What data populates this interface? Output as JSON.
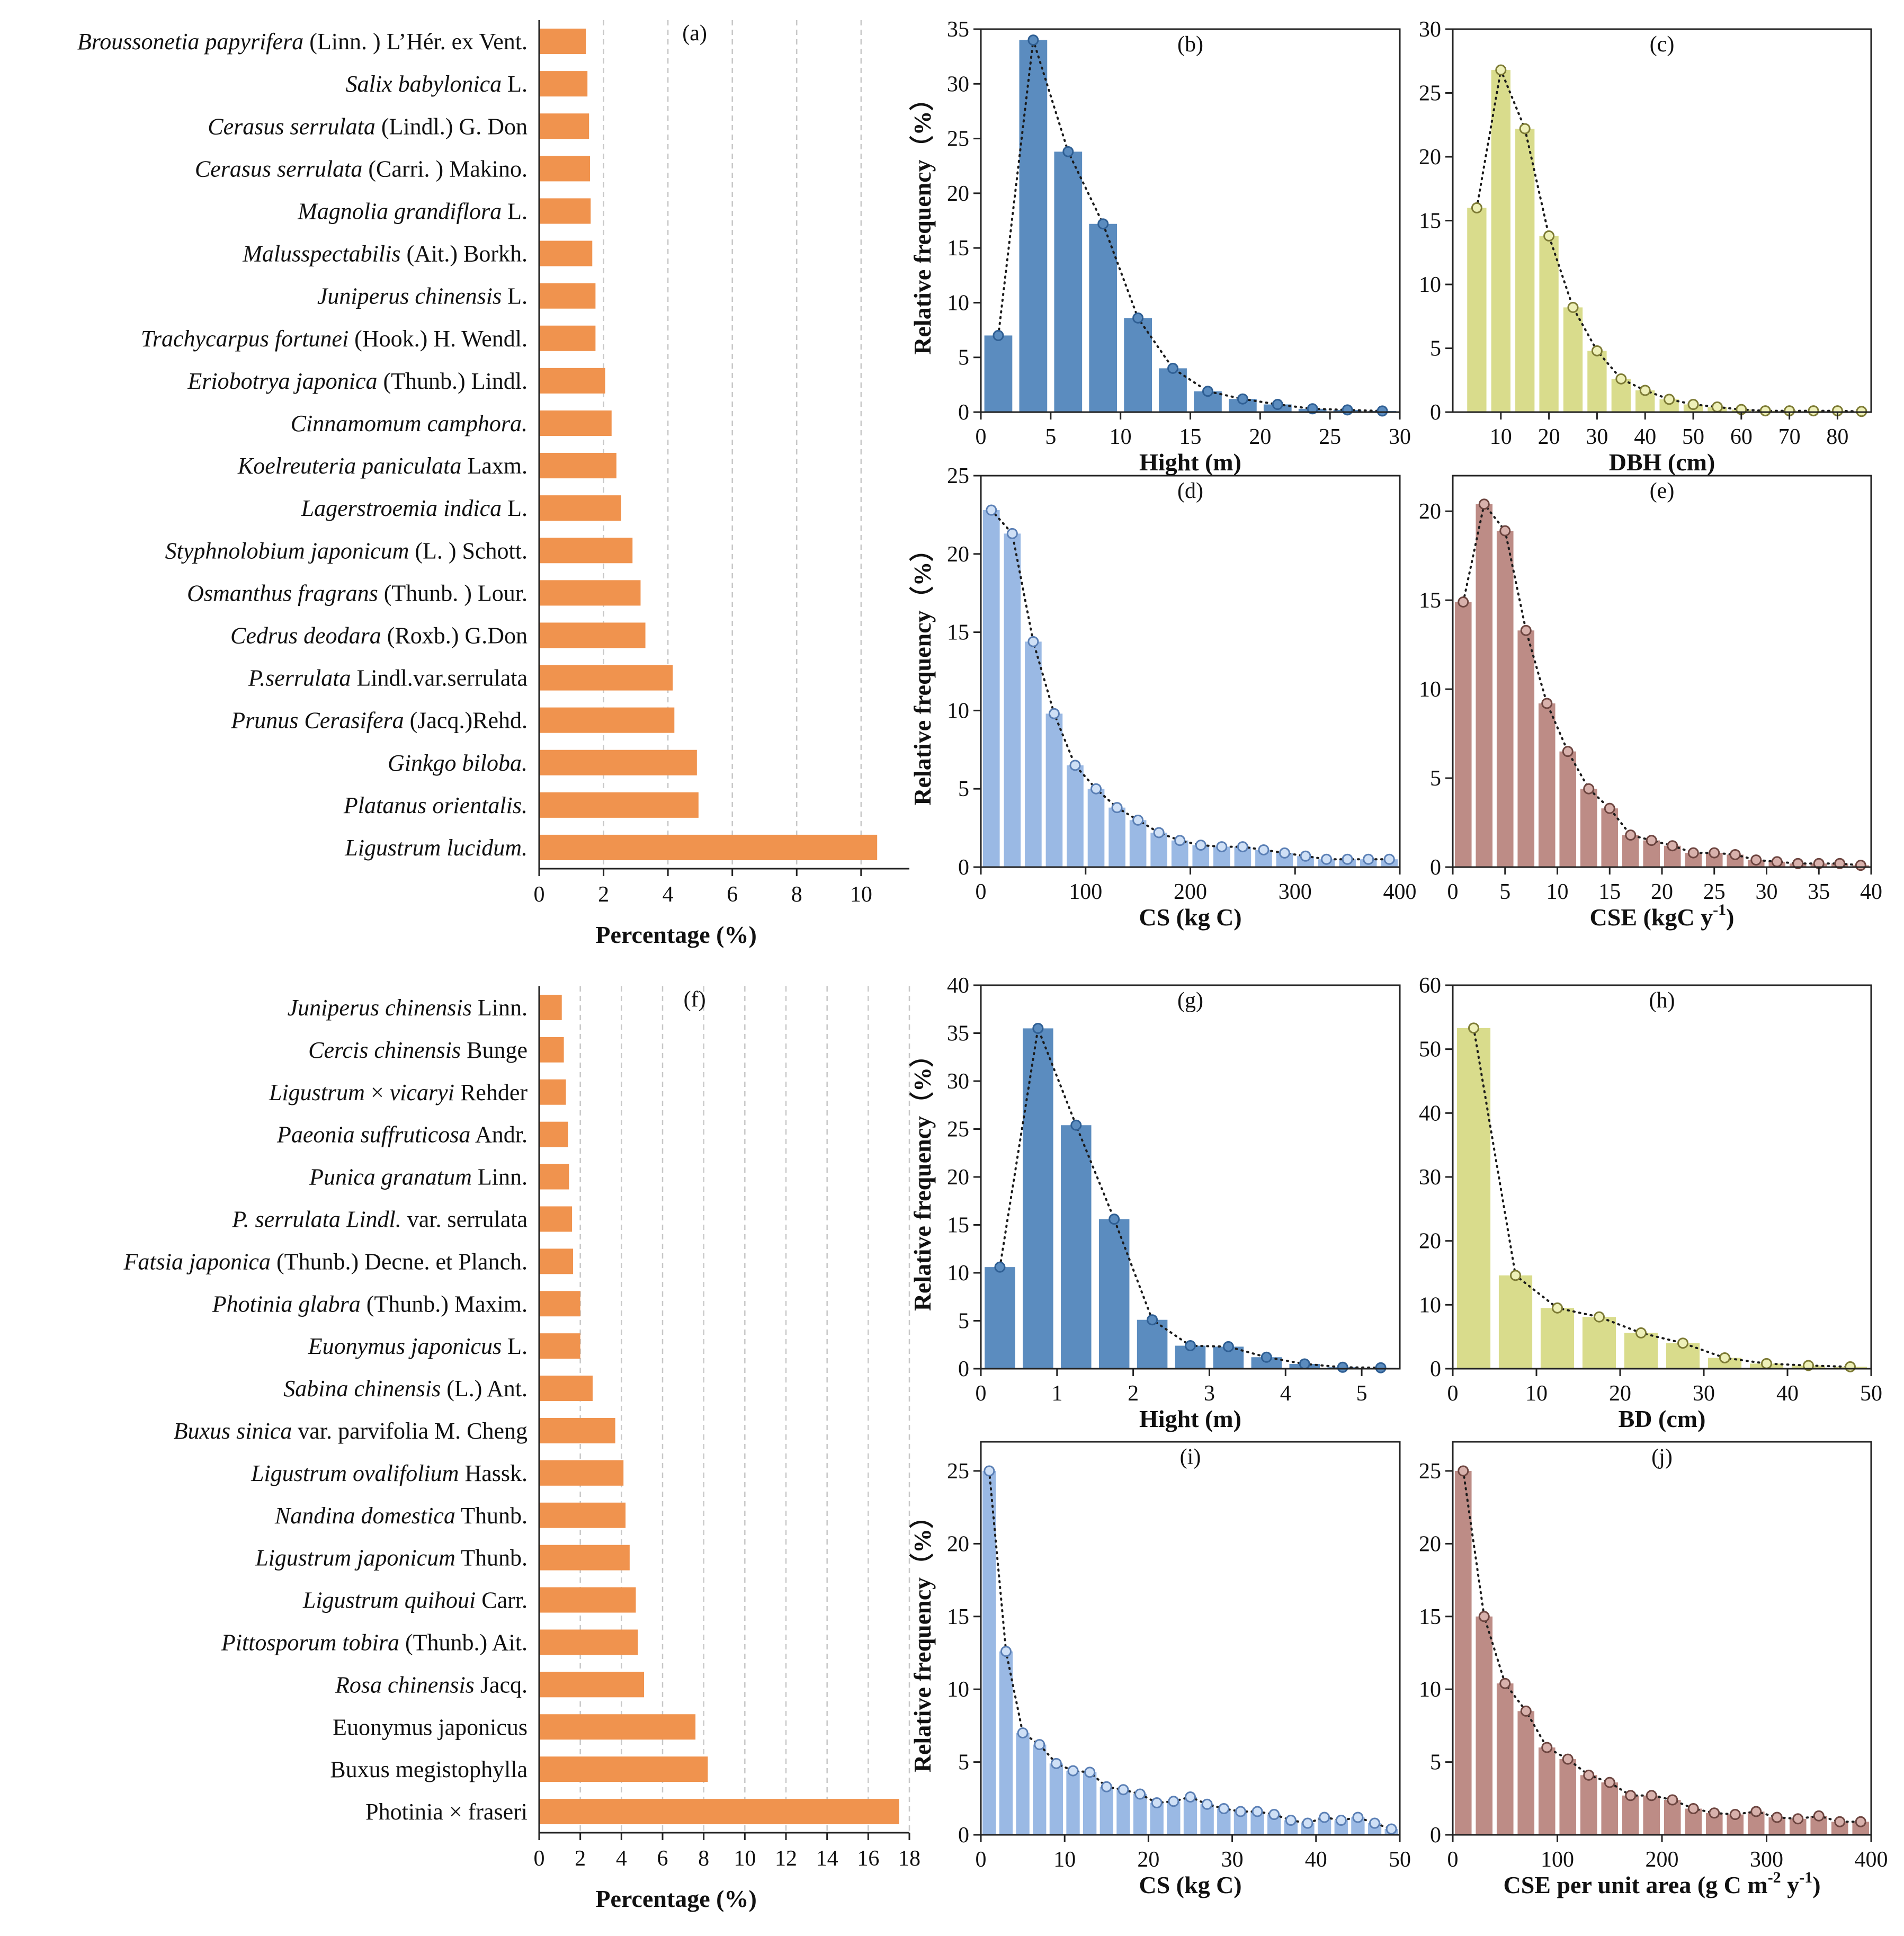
{
  "colors": {
    "bar_orange": "#f0934e",
    "hist_blue_dark": "#5b8cbf",
    "hist_blue_light": "#9ab9e4",
    "hist_yellow": "#d9dc8c",
    "hist_brown": "#bd8c86"
  },
  "chart_data": [
    {
      "id": "a",
      "type": "bar",
      "orientation": "horizontal",
      "panel_label": "(a)",
      "xlabel": "Percentage (%)",
      "ylabel": "",
      "xlim": [
        0,
        11.5
      ],
      "xticks": [
        0,
        2,
        4,
        6,
        8,
        10
      ],
      "grid": true,
      "categories": [
        [
          {
            "t": "Broussonetia papyrifera",
            "i": true
          },
          {
            "t": " (Linn. ) L’Hér. ex Vent.",
            "i": false
          }
        ],
        [
          {
            "t": "Salix babylonica",
            "i": true
          },
          {
            "t": " L.",
            "i": false
          }
        ],
        [
          {
            "t": "Cerasus serrulata",
            "i": true
          },
          {
            "t": " (Lindl.) G. Don",
            "i": false
          }
        ],
        [
          {
            "t": "Cerasus serrulata",
            "i": true
          },
          {
            "t": " (Carri. ) Makino.",
            "i": false
          }
        ],
        [
          {
            "t": "Magnolia grandiflora",
            "i": true
          },
          {
            "t": " L.",
            "i": false
          }
        ],
        [
          {
            "t": "Malusspectabilis",
            "i": true
          },
          {
            "t": " (Ait.) Borkh.",
            "i": false
          }
        ],
        [
          {
            "t": "Juniperus chinensis",
            "i": true
          },
          {
            "t": " L.",
            "i": false
          }
        ],
        [
          {
            "t": "Trachycarpus fortunei",
            "i": true
          },
          {
            "t": " (Hook.) H. Wendl.",
            "i": false
          }
        ],
        [
          {
            "t": "Eriobotrya japonica",
            "i": true
          },
          {
            "t": " (Thunb.) Lindl.",
            "i": false
          }
        ],
        [
          {
            "t": "Cinnamomum camphora.",
            "i": true
          }
        ],
        [
          {
            "t": "Koelreuteria paniculata",
            "i": true
          },
          {
            "t": " Laxm.",
            "i": false
          }
        ],
        [
          {
            "t": "Lagerstroemia indica",
            "i": true
          },
          {
            "t": " L.",
            "i": false
          }
        ],
        [
          {
            "t": "Styphnolobium japonicum",
            "i": true
          },
          {
            "t": " (L. ) Schott.",
            "i": false
          }
        ],
        [
          {
            "t": "Osmanthus fragrans",
            "i": true
          },
          {
            "t": " (Thunb. ) Lour.",
            "i": false
          }
        ],
        [
          {
            "t": "Cedrus deodara",
            "i": true
          },
          {
            "t": " (Roxb.) G.Don",
            "i": false
          }
        ],
        [
          {
            "t": "P.serrulata",
            "i": true
          },
          {
            "t": " Lindl.var.serrulata",
            "i": false
          }
        ],
        [
          {
            "t": "Prunus Cerasifera",
            "i": true
          },
          {
            "t": " (Jacq.)Rehd.",
            "i": false
          }
        ],
        [
          {
            "t": "Ginkgo biloba.",
            "i": true
          }
        ],
        [
          {
            "t": "Platanus orientalis.",
            "i": true
          }
        ],
        [
          {
            "t": "Ligustrum lucidum.",
            "i": true
          }
        ]
      ],
      "values": [
        1.45,
        1.5,
        1.55,
        1.58,
        1.6,
        1.65,
        1.75,
        1.75,
        2.05,
        2.25,
        2.4,
        2.55,
        2.9,
        3.15,
        3.3,
        4.15,
        4.2,
        4.9,
        4.95,
        10.5
      ]
    },
    {
      "id": "b",
      "type": "bar",
      "panel_label": "(b)",
      "xlabel": "Hight (m)",
      "ylabel": "Relative frequency（%）",
      "xlim": [
        0,
        30
      ],
      "ylim": [
        0,
        35
      ],
      "xticks": [
        0,
        5,
        10,
        15,
        20,
        25,
        30
      ],
      "yticks": [
        0,
        5,
        10,
        15,
        20,
        25,
        30,
        35
      ],
      "bin_width": 2.5,
      "x": [
        1.25,
        3.75,
        6.25,
        8.75,
        11.25,
        13.75,
        16.25,
        18.75,
        21.25,
        23.75,
        26.25,
        28.75
      ],
      "values": [
        7.0,
        34.0,
        23.8,
        17.2,
        8.6,
        4.0,
        1.9,
        1.2,
        0.7,
        0.3,
        0.2,
        0.1
      ]
    },
    {
      "id": "c",
      "type": "bar",
      "panel_label": "(c)",
      "xlabel": "DBH (cm)",
      "ylabel": "",
      "xlim": [
        0,
        87
      ],
      "ylim": [
        0,
        30
      ],
      "xticks": [
        10,
        20,
        30,
        40,
        50,
        60,
        70,
        80
      ],
      "yticks": [
        0,
        5,
        10,
        15,
        20,
        25,
        30
      ],
      "bin_width": 5,
      "x": [
        5,
        10,
        15,
        20,
        25,
        30,
        35,
        40,
        45,
        50,
        55,
        60,
        65,
        70,
        75,
        80,
        85
      ],
      "values": [
        16.0,
        26.8,
        22.2,
        13.8,
        8.2,
        4.8,
        2.6,
        1.7,
        1.0,
        0.6,
        0.4,
        0.2,
        0.1,
        0.1,
        0.1,
        0.1,
        0.05
      ]
    },
    {
      "id": "d",
      "type": "bar",
      "panel_label": "(d)",
      "xlabel": "CS (kg C)",
      "ylabel": "Relative frequency（%）",
      "xlim": [
        0,
        400
      ],
      "ylim": [
        0,
        25
      ],
      "xticks": [
        0,
        100,
        200,
        300,
        400
      ],
      "yticks": [
        0,
        5,
        10,
        15,
        20,
        25
      ],
      "bin_width": 20,
      "x": [
        10,
        30,
        50,
        70,
        90,
        110,
        130,
        150,
        170,
        190,
        210,
        230,
        250,
        270,
        290,
        310,
        330,
        350,
        370,
        390
      ],
      "values": [
        22.8,
        21.3,
        14.4,
        9.8,
        6.5,
        5.0,
        3.8,
        3.0,
        2.2,
        1.7,
        1.4,
        1.3,
        1.3,
        1.1,
        0.9,
        0.7,
        0.5,
        0.5,
        0.5,
        0.5
      ]
    },
    {
      "id": "e",
      "type": "bar",
      "panel_label": "(e)",
      "xlabel": "CSE (kgC y-1)",
      "ylabel": "",
      "xlim": [
        0,
        40
      ],
      "ylim": [
        0,
        22
      ],
      "xticks": [
        0,
        5,
        10,
        15,
        20,
        25,
        30,
        35,
        40
      ],
      "yticks": [
        0,
        5,
        10,
        15,
        20
      ],
      "bin_width": 2,
      "x": [
        1,
        3,
        5,
        7,
        9,
        11,
        13,
        15,
        17,
        19,
        21,
        23,
        25,
        27,
        29,
        31,
        33,
        35,
        37,
        39
      ],
      "values": [
        14.9,
        20.4,
        18.9,
        13.3,
        9.2,
        6.5,
        4.4,
        3.3,
        1.8,
        1.5,
        1.2,
        0.8,
        0.8,
        0.7,
        0.4,
        0.3,
        0.2,
        0.2,
        0.2,
        0.1
      ]
    },
    {
      "id": "f",
      "type": "bar",
      "orientation": "horizontal",
      "panel_label": "(f)",
      "xlabel": "Percentage (%)",
      "ylabel": "",
      "xlim": [
        0,
        18
      ],
      "xticks": [
        0,
        2,
        4,
        6,
        8,
        10,
        12,
        14,
        16,
        18
      ],
      "grid": true,
      "categories": [
        [
          {
            "t": "Juniperus chinensis",
            "i": true
          },
          {
            "t": " Linn.",
            "i": false
          }
        ],
        [
          {
            "t": "Cercis chinensis",
            "i": true
          },
          {
            "t": " Bunge",
            "i": false
          }
        ],
        [
          {
            "t": "Ligustrum",
            "i": true
          },
          {
            "t": " × ",
            "i": false
          },
          {
            "t": "vicaryi",
            "i": true
          },
          {
            "t": " Rehder",
            "i": false
          }
        ],
        [
          {
            "t": "Paeonia suffruticosa",
            "i": true
          },
          {
            "t": " Andr.",
            "i": false
          }
        ],
        [
          {
            "t": "Punica granatum",
            "i": true
          },
          {
            "t": " Linn.",
            "i": false
          }
        ],
        [
          {
            "t": "P. serrulata Lindl.",
            "i": true
          },
          {
            "t": " var. serrulata",
            "i": false
          }
        ],
        [
          {
            "t": "Fatsia japonica",
            "i": true
          },
          {
            "t": " (Thunb.) Decne. et Planch.",
            "i": false
          }
        ],
        [
          {
            "t": "Photinia glabra",
            "i": true
          },
          {
            "t": " (Thunb.) Maxim.",
            "i": false
          }
        ],
        [
          {
            "t": "Euonymus japonicus",
            "i": true
          },
          {
            "t": " L.",
            "i": false
          }
        ],
        [
          {
            "t": "Sabina chinensis",
            "i": true
          },
          {
            "t": " (L.) Ant.",
            "i": false
          }
        ],
        [
          {
            "t": "Buxus sinica",
            "i": true
          },
          {
            "t": " var. parvifolia M. Cheng",
            "i": false
          }
        ],
        [
          {
            "t": "Ligustrum ovalifolium",
            "i": true
          },
          {
            "t": " Hassk.",
            "i": false
          }
        ],
        [
          {
            "t": "Nandina domestica",
            "i": true
          },
          {
            "t": " Thunb.",
            "i": false
          }
        ],
        [
          {
            "t": "Ligustrum japonicum",
            "i": true
          },
          {
            "t": " Thunb.",
            "i": false
          }
        ],
        [
          {
            "t": "Ligustrum quihoui",
            "i": true
          },
          {
            "t": " Carr.",
            "i": false
          }
        ],
        [
          {
            "t": "Pittosporum tobira",
            "i": true
          },
          {
            "t": " (Thunb.) Ait.",
            "i": false
          }
        ],
        [
          {
            "t": "Rosa chinensis",
            "i": true
          },
          {
            "t": " Jacq.",
            "i": false
          }
        ],
        [
          {
            "t": "Euonymus japonicus",
            "i": false
          }
        ],
        [
          {
            "t": "Buxus megistophylla",
            "i": false
          }
        ],
        [
          {
            "t": "Photinia × fraseri",
            "i": false
          }
        ]
      ],
      "values": [
        1.1,
        1.2,
        1.3,
        1.4,
        1.45,
        1.6,
        1.65,
        2.0,
        2.0,
        2.6,
        3.7,
        4.1,
        4.2,
        4.4,
        4.7,
        4.8,
        5.1,
        7.6,
        8.2,
        17.5
      ]
    },
    {
      "id": "g",
      "type": "bar",
      "panel_label": "(g)",
      "xlabel": "Hight (m)",
      "ylabel": "Relative frequency（%）",
      "xlim": [
        0,
        5.5
      ],
      "ylim": [
        0,
        40
      ],
      "xticks": [
        0,
        1,
        2,
        3,
        4,
        5
      ],
      "yticks": [
        0,
        5,
        10,
        15,
        20,
        25,
        30,
        35,
        40
      ],
      "bin_width": 0.5,
      "x": [
        0.25,
        0.75,
        1.25,
        1.75,
        2.25,
        2.75,
        3.25,
        3.75,
        4.25,
        4.75,
        5.25
      ],
      "values": [
        10.6,
        35.5,
        25.4,
        15.6,
        5.1,
        2.4,
        2.3,
        1.2,
        0.5,
        0.15,
        0.1
      ]
    },
    {
      "id": "h",
      "type": "bar",
      "panel_label": "(h)",
      "xlabel": "BD (cm)",
      "ylabel": "",
      "xlim": [
        0,
        50
      ],
      "ylim": [
        0,
        60
      ],
      "xticks": [
        0,
        10,
        20,
        30,
        40,
        50
      ],
      "yticks": [
        0,
        10,
        20,
        30,
        40,
        50,
        60
      ],
      "bin_width": 5,
      "x": [
        2.5,
        7.5,
        12.5,
        17.5,
        22.5,
        27.5,
        32.5,
        37.5,
        42.5,
        47.5
      ],
      "values": [
        53.3,
        14.6,
        9.5,
        8.1,
        5.6,
        4.0,
        1.7,
        0.8,
        0.5,
        0.3
      ]
    },
    {
      "id": "i",
      "type": "bar",
      "panel_label": "(i)",
      "xlabel": "CS (kg C)",
      "ylabel": "Relative frequency（%）",
      "xlim": [
        0,
        50
      ],
      "ylim": [
        0,
        27
      ],
      "xticks": [
        0,
        10,
        20,
        30,
        40,
        50
      ],
      "yticks": [
        0,
        5,
        10,
        15,
        20,
        25
      ],
      "bin_width": 2,
      "x": [
        1,
        3,
        5,
        7,
        9,
        11,
        13,
        15,
        17,
        19,
        21,
        23,
        25,
        27,
        29,
        31,
        33,
        35,
        37,
        39,
        41,
        43,
        45,
        47,
        49
      ],
      "values": [
        25.0,
        12.6,
        7.0,
        6.2,
        4.9,
        4.4,
        4.3,
        3.3,
        3.1,
        2.8,
        2.2,
        2.3,
        2.6,
        2.1,
        1.8,
        1.6,
        1.6,
        1.4,
        1.0,
        0.8,
        1.2,
        1.0,
        1.2,
        0.8,
        0.4
      ]
    },
    {
      "id": "j",
      "type": "bar",
      "panel_label": "(j)",
      "xlabel": "CSE per unit area (g C m-2 y-1)",
      "ylabel": "",
      "xlim": [
        0,
        400
      ],
      "ylim": [
        0,
        27
      ],
      "xticks": [
        0,
        100,
        200,
        300,
        400
      ],
      "yticks": [
        0,
        5,
        10,
        15,
        20,
        25
      ],
      "bin_width": 20,
      "x": [
        10,
        30,
        50,
        70,
        90,
        110,
        130,
        150,
        170,
        190,
        210,
        230,
        250,
        270,
        290,
        310,
        330,
        350,
        370,
        390
      ],
      "values": [
        25.0,
        15.0,
        10.4,
        8.5,
        6.0,
        5.2,
        4.1,
        3.6,
        2.7,
        2.7,
        2.4,
        1.8,
        1.5,
        1.4,
        1.6,
        1.2,
        1.1,
        1.3,
        0.9,
        0.9
      ]
    }
  ]
}
